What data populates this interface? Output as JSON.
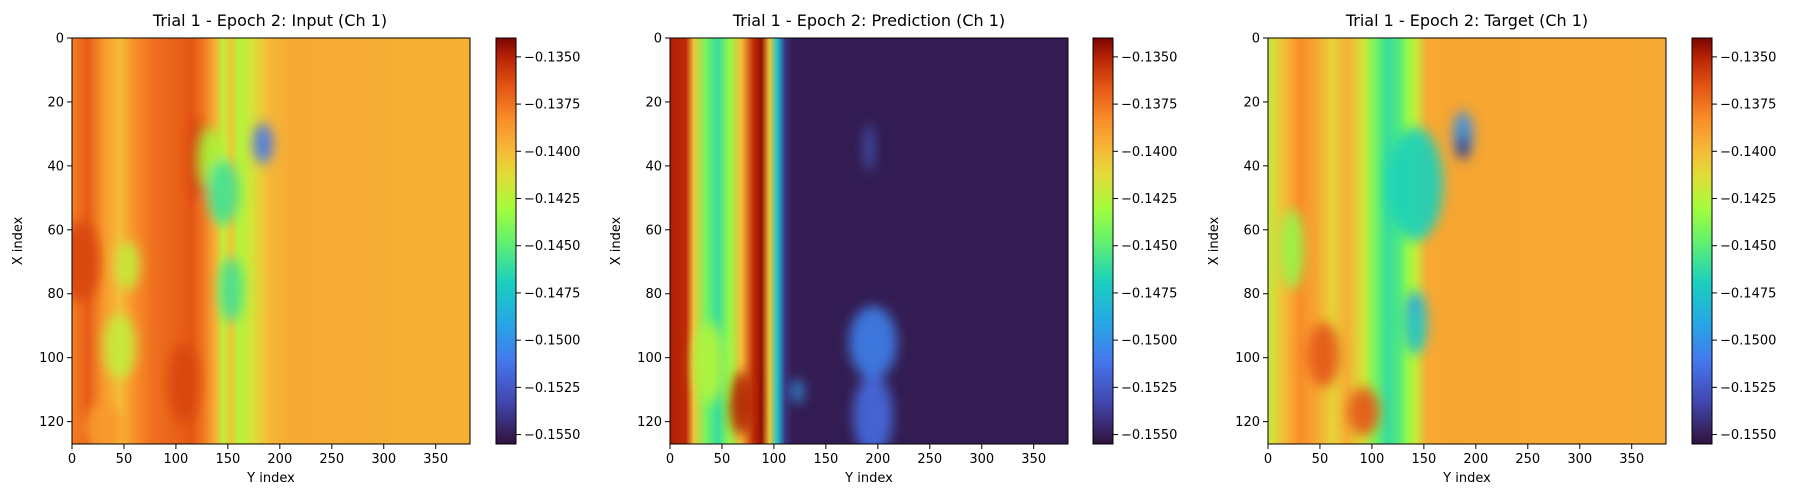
{
  "colormap": "turbo",
  "chart_data": [
    {
      "type": "heatmap",
      "title": "Trial 1 - Epoch 2: Input (Ch 1)",
      "xlabel": "Y index",
      "ylabel": "X index",
      "x_ticks": [
        0,
        50,
        100,
        150,
        200,
        250,
        300,
        350
      ],
      "y_ticks": [
        0,
        20,
        40,
        60,
        80,
        100,
        120
      ],
      "xlim": [
        0,
        383
      ],
      "ylim": [
        127,
        0
      ],
      "colorbar": {
        "vmin": -0.1555,
        "vmax": -0.134,
        "ticks": [
          -0.135,
          -0.1375,
          -0.14,
          -0.1425,
          -0.145,
          -0.1475,
          -0.15,
          -0.1525,
          -0.155
        ],
        "tick_labels": [
          "−0.1350",
          "−0.1375",
          "−0.1400",
          "−0.1425",
          "−0.1450",
          "−0.1475",
          "−0.1500",
          "−0.1525",
          "−0.1550"
        ]
      }
    },
    {
      "type": "heatmap",
      "title": "Trial 1 - Epoch 2: Prediction (Ch 1)",
      "xlabel": "Y index",
      "ylabel": "X index",
      "x_ticks": [
        0,
        50,
        100,
        150,
        200,
        250,
        300,
        350
      ],
      "y_ticks": [
        0,
        20,
        40,
        60,
        80,
        100,
        120
      ],
      "xlim": [
        0,
        383
      ],
      "ylim": [
        127,
        0
      ],
      "colorbar": {
        "vmin": -0.1555,
        "vmax": -0.134,
        "ticks": [
          -0.135,
          -0.1375,
          -0.14,
          -0.1425,
          -0.145,
          -0.1475,
          -0.15,
          -0.1525,
          -0.155
        ],
        "tick_labels": [
          "−0.1350",
          "−0.1375",
          "−0.1400",
          "−0.1425",
          "−0.1450",
          "−0.1475",
          "−0.1500",
          "−0.1525",
          "−0.1550"
        ]
      }
    },
    {
      "type": "heatmap",
      "title": "Trial 1 - Epoch 2: Target (Ch 1)",
      "xlabel": "Y index",
      "ylabel": "X index",
      "x_ticks": [
        0,
        50,
        100,
        150,
        200,
        250,
        300,
        350
      ],
      "y_ticks": [
        0,
        20,
        40,
        60,
        80,
        100,
        120
      ],
      "xlim": [
        0,
        383
      ],
      "ylim": [
        127,
        0
      ],
      "colorbar": {
        "vmin": -0.1555,
        "vmax": -0.134,
        "ticks": [
          -0.135,
          -0.1375,
          -0.14,
          -0.1425,
          -0.145,
          -0.1475,
          -0.15,
          -0.1525,
          -0.155
        ],
        "tick_labels": [
          "−0.1350",
          "−0.1375",
          "−0.1400",
          "−0.1425",
          "−0.1450",
          "−0.1475",
          "−0.1500",
          "−0.1525",
          "−0.1550"
        ]
      }
    }
  ]
}
